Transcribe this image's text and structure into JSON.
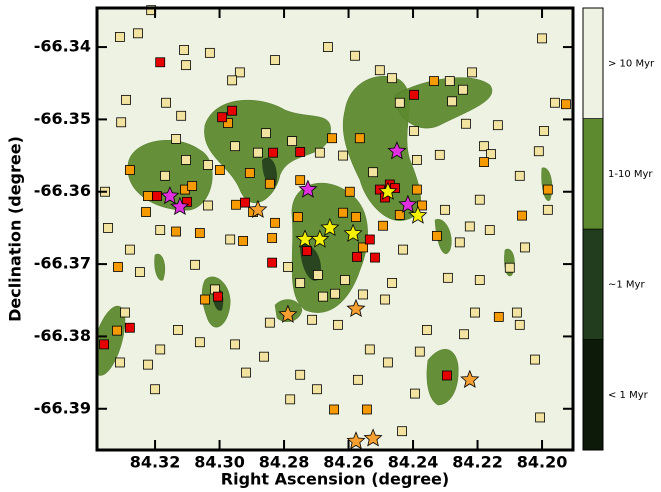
{
  "chart_data": {
    "type": "scatter",
    "xlabel": "Right Ascension (degree)",
    "ylabel": "Declination (degree)",
    "xlim": [
      84.338,
      84.1904
    ],
    "ylim": [
      -66.3957,
      -66.3346
    ],
    "xticks": [
      84.32,
      {
        "value": 84.3,
        "label": "84.30"
      },
      84.28,
      84.26,
      84.24,
      84.22,
      {
        "value": 84.2,
        "label": "84.20"
      }
    ],
    "yticks": [
      -66.34,
      -66.35,
      -66.36,
      -66.37,
      -66.38,
      -66.39
    ],
    "background": "#eef2e2",
    "colorbar": [
      {
        "label": "< 1 Myr",
        "color": "#0d1a0a"
      },
      {
        "label": "~1 Myr",
        "color": "#223d1d"
      },
      {
        "label": "1-10 Myr",
        "color": "#5e8a2f"
      },
      {
        "label": "> 10 Myr",
        "color": "#eef2e2"
      }
    ],
    "series": [
      {
        "color": "#f3e3a0",
        "marker": "square",
        "x": [
          84.3309,
          84.3212,
          84.3253,
          84.311,
          84.3104,
          84.303,
          84.2937,
          84.2961,
          84.2828,
          84.2664,
          84.258,
          84.2503,
          84.2465,
          84.2286,
          84.2217,
          84.2245,
          84.2,
          84.196,
          84.329,
          84.3305,
          84.3166,
          84.3119,
          84.3135,
          84.3104,
          84.3036,
          84.2952,
          84.2881,
          84.2856,
          84.2775,
          84.2689,
          84.2617,
          84.2524,
          84.2441,
          84.2397,
          84.2279,
          84.2236,
          84.218,
          84.2158,
          84.2069,
          84.201,
          84.1994,
          84.1982,
          84.2053,
          84.21,
          84.2078,
          84.2193,
          84.2224,
          84.2301,
          84.2317,
          84.2388,
          84.2431,
          84.2465,
          84.2487,
          84.2555,
          84.2611,
          84.2642,
          84.2695,
          84.2679,
          84.275,
          84.2788,
          84.2713,
          84.2698,
          84.2534,
          84.2478,
          84.2571,
          84.2434,
          84.2394,
          84.2357,
          84.2379,
          84.2242,
          84.2208,
          84.2193,
          84.2292,
          84.2069,
          84.2022,
          84.2006,
          84.2918,
          84.2844,
          84.2862,
          84.2952,
          84.3061,
          84.3129,
          84.3184,
          84.3222,
          84.32,
          84.3309,
          84.3293,
          84.3247,
          84.3355,
          84.3346,
          84.3278,
          84.3076,
          84.3014,
          84.2967,
          84.3036,
          84.3184,
          84.3169,
          84.2781,
          84.275,
          84.2633,
          84.2255,
          84.2162,
          84.2137
        ],
        "values": [
          -66.3386,
          -66.3349,
          -66.3381,
          -66.3404,
          -66.3425,
          -66.3408,
          -66.3435,
          -66.3446,
          -66.3418,
          -66.34,
          -66.3412,
          -66.3432,
          -66.3443,
          -66.3447,
          -66.3435,
          -66.3459,
          -66.3388,
          -66.3477,
          -66.3473,
          -66.3504,
          -66.3477,
          -66.3495,
          -66.3527,
          -66.3556,
          -66.3563,
          -66.3537,
          -66.3546,
          -66.3519,
          -66.353,
          -66.3546,
          -66.355,
          -66.3573,
          -66.3477,
          -66.3516,
          -66.3475,
          -66.3506,
          -66.3537,
          -66.3548,
          -66.3578,
          -66.3544,
          -66.3516,
          -66.3625,
          -66.3677,
          -66.3705,
          -66.3767,
          -66.3611,
          -66.3648,
          -66.3625,
          -66.3549,
          -66.3556,
          -66.368,
          -66.3726,
          -66.3749,
          -66.3742,
          -66.3722,
          -66.3741,
          -66.3715,
          -66.3745,
          -66.3726,
          -66.3704,
          -66.3777,
          -66.3873,
          -66.3818,
          -66.3836,
          -66.386,
          -66.3931,
          -66.3879,
          -66.3791,
          -66.3821,
          -66.3797,
          -66.3767,
          -66.3722,
          -66.3719,
          -66.3784,
          -66.3832,
          -66.3912,
          -66.385,
          -66.3781,
          -66.3828,
          -66.3811,
          -66.3808,
          -66.3791,
          -66.3818,
          -66.3839,
          -66.3873,
          -66.3836,
          -66.3767,
          -66.3711,
          -66.36,
          -66.365,
          -66.368,
          -66.3701,
          -66.3735,
          -66.3666,
          -66.3619,
          -66.3653,
          -66.3578,
          -66.3887,
          -66.3853,
          -66.3784,
          -66.367,
          -66.3653,
          -66.3508
        ]
      },
      {
        "color": "#f59a00",
        "marker": "square",
        "x": [
          84.3278,
          84.3315,
          84.3318,
          84.3228,
          84.3222,
          84.3135,
          84.3107,
          84.3085,
          84.2999,
          84.2974,
          84.2927,
          84.2906,
          84.2949,
          84.2896,
          84.2837,
          84.2844,
          84.275,
          84.2757,
          84.2651,
          84.2596,
          84.2577,
          84.2565,
          84.2617,
          84.2555,
          84.2493,
          84.2441,
          84.2388,
          84.2372,
          84.2335,
          84.2326,
          84.218,
          84.2134,
          84.2062,
          84.1982,
          84.1926,
          84.2543,
          84.2645,
          84.2828,
          84.3045,
          84.3061
        ],
        "values": [
          -66.357,
          -66.3704,
          -66.3792,
          -66.3628,
          -66.3606,
          -66.3655,
          -66.3597,
          -66.3592,
          -66.357,
          -66.3505,
          -66.3668,
          -66.3574,
          -66.3618,
          -66.3628,
          -66.3664,
          -66.3589,
          -66.3584,
          -66.3635,
          -66.3526,
          -66.36,
          -66.3635,
          -66.3526,
          -66.3629,
          -66.3677,
          -66.3647,
          -66.3632,
          -66.3597,
          -66.3619,
          -66.3447,
          -66.3661,
          -66.3559,
          -66.3773,
          -66.3633,
          -66.3597,
          -66.3479,
          -66.3901,
          -66.3901,
          -66.3643,
          -66.3749,
          -66.3657
        ]
      },
      {
        "color": "#e60000",
        "marker": "square",
        "x": [
          84.3184,
          84.3278,
          84.3358,
          84.3194,
          84.3101,
          84.2992,
          84.2961,
          84.2921,
          84.3005,
          84.2834,
          84.275,
          84.2837,
          84.2729,
          84.2534,
          84.2574,
          84.2518,
          84.2503,
          84.2472,
          84.2487,
          84.2456,
          84.2397,
          84.2295
        ],
        "values": [
          -66.3421,
          -66.3788,
          -66.3811,
          -66.3606,
          -66.3614,
          -66.3497,
          -66.3488,
          -66.3615,
          -66.3745,
          -66.3546,
          -66.3545,
          -66.3698,
          -66.3682,
          -66.3666,
          -66.369,
          -66.3691,
          -66.3597,
          -66.359,
          -66.3608,
          -66.3595,
          -66.3466,
          -66.3854
        ]
      },
      {
        "color": "#f5a030",
        "marker": "star",
        "x": [
          84.2788,
          84.2577,
          84.2577,
          84.2524,
          84.2224,
          84.2881
        ],
        "values": [
          -66.377,
          -66.3762,
          -66.3945,
          -66.3941,
          -66.386,
          -66.3625
        ]
      },
      {
        "color": "#f5f000",
        "marker": "star",
        "x": [
          84.2658,
          84.2735,
          84.2689,
          84.2586,
          84.2385,
          84.2478
        ],
        "values": [
          -66.365,
          -66.3666,
          -66.3666,
          -66.3658,
          -66.3633,
          -66.36
        ]
      },
      {
        "color": "#e030e0",
        "marker": "star",
        "x": [
          84.3154,
          84.3123,
          84.2726,
          84.245,
          84.2416
        ],
        "values": [
          -66.3606,
          -66.3621,
          -66.3597,
          -66.3544,
          -66.3618
        ]
      }
    ]
  }
}
